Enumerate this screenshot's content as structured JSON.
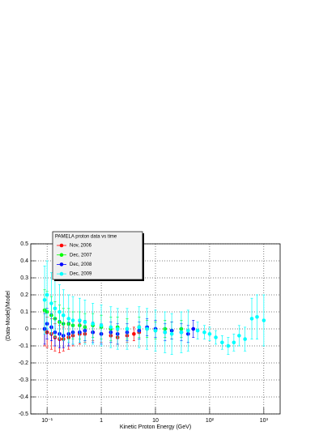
{
  "chart_data": {
    "type": "scatter",
    "x_label": "Kinetic Proton Energy (GeV)",
    "y_label": "(Data-Model)/Model",
    "legend_title": "PAMELA proton data vs time",
    "xlog": true,
    "grid": true,
    "xlim": [
      0.05,
      2000
    ],
    "ylim": [
      -0.5,
      0.5
    ],
    "xticks": [
      {
        "value": 0.1,
        "label": "10⁻¹"
      },
      1,
      10,
      {
        "value": 100,
        "label": "10²"
      },
      {
        "value": 1000,
        "label": "10³"
      }
    ],
    "yticks": [
      -0.5,
      -0.4,
      -0.3,
      -0.2,
      -0.1,
      0,
      0.1,
      0.2,
      0.3,
      0.4,
      0.5
    ],
    "series": [
      {
        "name": "Nov, 2006",
        "color": "#ff0000",
        "x": [
          0.09,
          0.1,
          0.12,
          0.14,
          0.17,
          0.2,
          0.25,
          0.3,
          0.4,
          0.5,
          0.7,
          1,
          1.5,
          2,
          3,
          4,
          5
        ],
        "values": [
          0.0,
          -0.02,
          -0.03,
          -0.05,
          -0.06,
          -0.06,
          -0.05,
          -0.04,
          -0.03,
          -0.03,
          -0.02,
          -0.03,
          -0.04,
          -0.05,
          -0.04,
          -0.03,
          -0.02
        ],
        "errors": [
          0.1,
          0.09,
          0.09,
          0.08,
          0.08,
          0.07,
          0.07,
          0.06,
          0.06,
          0.05,
          0.05,
          0.05,
          0.04,
          0.04,
          0.04,
          0.04,
          0.04
        ]
      },
      {
        "name": "Dec, 2007",
        "color": "#00ff00",
        "x": [
          0.09,
          0.1,
          0.12,
          0.14,
          0.17,
          0.2,
          0.25,
          0.3,
          0.4,
          0.5,
          0.7,
          1,
          1.5,
          2,
          3,
          5,
          7,
          10,
          15,
          20,
          30
        ],
        "values": [
          0.11,
          0.1,
          0.08,
          0.06,
          0.04,
          0.03,
          0.03,
          0.02,
          0.02,
          0.01,
          0.02,
          0.01,
          0.0,
          0.01,
          0.0,
          0.01,
          0.0,
          -0.01,
          0.0,
          -0.01,
          0.0
        ],
        "errors": [
          0.12,
          0.12,
          0.11,
          0.1,
          0.1,
          0.09,
          0.09,
          0.08,
          0.08,
          0.08,
          0.07,
          0.07,
          0.07,
          0.06,
          0.06,
          0.06,
          0.05,
          0.05,
          0.05,
          0.05,
          0.05
        ]
      },
      {
        "name": "Dec, 2008",
        "color": "#0000ff",
        "x": [
          0.09,
          0.1,
          0.12,
          0.14,
          0.17,
          0.2,
          0.25,
          0.3,
          0.4,
          0.5,
          0.7,
          1,
          1.5,
          2,
          3,
          5,
          7,
          10,
          15,
          20,
          30,
          40,
          50
        ],
        "values": [
          0.0,
          0.03,
          0.01,
          -0.02,
          -0.03,
          -0.04,
          -0.03,
          -0.02,
          -0.02,
          -0.01,
          -0.02,
          -0.03,
          -0.02,
          -0.03,
          -0.02,
          -0.01,
          0.01,
          0.0,
          -0.02,
          -0.01,
          -0.02,
          -0.03,
          0.0
        ],
        "errors": [
          0.09,
          0.09,
          0.08,
          0.08,
          0.08,
          0.07,
          0.07,
          0.07,
          0.06,
          0.06,
          0.06,
          0.06,
          0.06,
          0.06,
          0.05,
          0.05,
          0.05,
          0.05,
          0.05,
          0.05,
          0.05,
          0.05,
          0.05
        ]
      },
      {
        "name": "Dec, 2009",
        "color": "#00ffff",
        "x": [
          0.09,
          0.1,
          0.12,
          0.14,
          0.17,
          0.2,
          0.25,
          0.3,
          0.4,
          0.5,
          0.7,
          1,
          1.5,
          2,
          3,
          5,
          7,
          10,
          15,
          20,
          30,
          40,
          60,
          80,
          100,
          130,
          170,
          220,
          280,
          350,
          450,
          600,
          750,
          1000
        ],
        "values": [
          0.17,
          0.2,
          0.15,
          0.12,
          0.1,
          0.08,
          0.06,
          0.05,
          0.05,
          0.04,
          0.03,
          0.02,
          0.01,
          0.0,
          0.0,
          0.01,
          0.0,
          -0.01,
          -0.02,
          -0.03,
          -0.02,
          -0.01,
          -0.01,
          -0.02,
          -0.03,
          -0.05,
          -0.08,
          -0.1,
          -0.08,
          -0.04,
          -0.06,
          0.06,
          0.07,
          0.05
        ],
        "errors": [
          0.2,
          0.2,
          0.18,
          0.17,
          0.16,
          0.15,
          0.14,
          0.14,
          0.13,
          0.13,
          0.12,
          0.12,
          0.12,
          0.12,
          0.12,
          0.12,
          0.12,
          0.12,
          0.12,
          0.12,
          0.12,
          0.12,
          0.05,
          0.04,
          0.04,
          0.04,
          0.04,
          0.05,
          0.05,
          0.06,
          0.07,
          0.12,
          0.13,
          0.15
        ]
      }
    ]
  }
}
